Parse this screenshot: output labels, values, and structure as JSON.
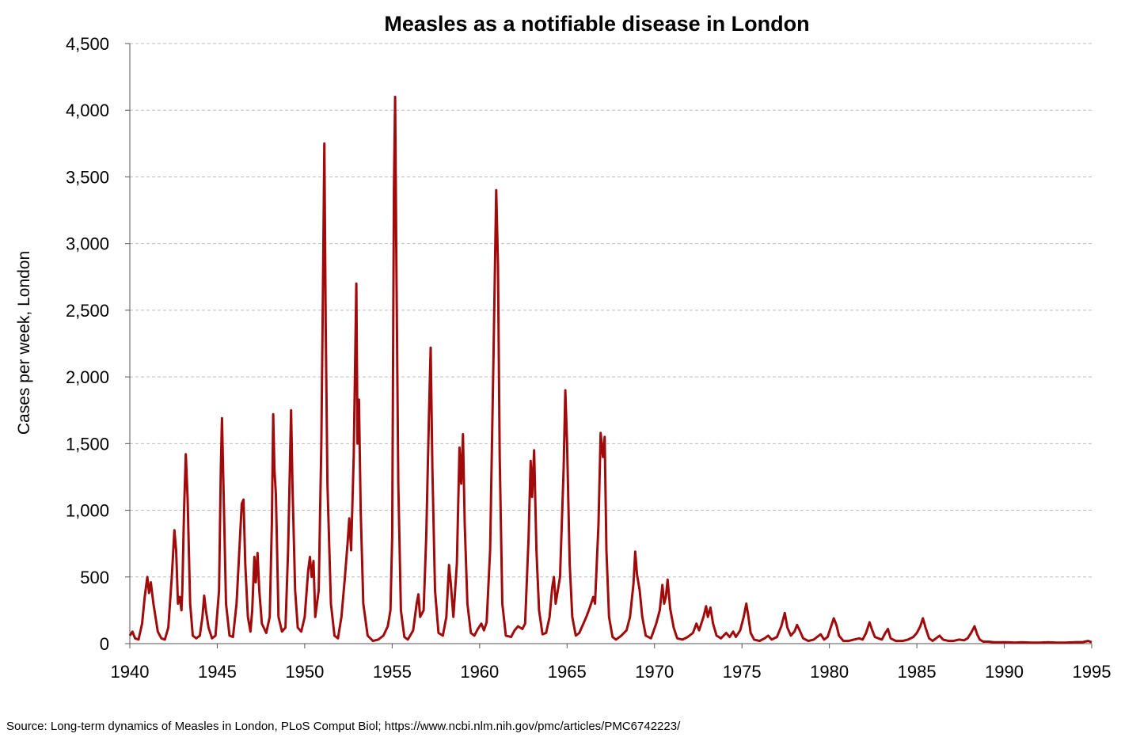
{
  "chart_data": {
    "type": "line",
    "title": "Measles as a notifiable disease in London",
    "xlabel": "",
    "ylabel": "Cases per week, London",
    "source": "Source: Long-term dynamics of Measles in London, PLoS Comput Biol; https://www.ncbi.nlm.nih.gov/pmc/articles/PMC6742223/",
    "xlim": [
      1940,
      1995
    ],
    "ylim": [
      0,
      4500
    ],
    "x_ticks": [
      "1940",
      "1945",
      "1950",
      "1955",
      "1960",
      "1965",
      "1970",
      "1975",
      "1980",
      "1985",
      "1990",
      "1995"
    ],
    "y_ticks": [
      "0",
      "500",
      "1,000",
      "1,500",
      "2,000",
      "2,500",
      "3,000",
      "3,500",
      "4,000",
      "4,500"
    ],
    "grid": "horizontal dashed",
    "line_color": "#a00a0a",
    "series": [
      {
        "name": "",
        "points": [
          [
            1940.0,
            60
          ],
          [
            1940.15,
            90
          ],
          [
            1940.3,
            40
          ],
          [
            1940.5,
            30
          ],
          [
            1940.7,
            150
          ],
          [
            1940.85,
            350
          ],
          [
            1941.0,
            500
          ],
          [
            1941.1,
            380
          ],
          [
            1941.2,
            460
          ],
          [
            1941.35,
            300
          ],
          [
            1941.6,
            90
          ],
          [
            1941.8,
            40
          ],
          [
            1942.0,
            30
          ],
          [
            1942.2,
            120
          ],
          [
            1942.4,
            500
          ],
          [
            1942.55,
            850
          ],
          [
            1942.65,
            700
          ],
          [
            1942.75,
            300
          ],
          [
            1942.85,
            350
          ],
          [
            1942.95,
            250
          ],
          [
            1943.0,
            400
          ],
          [
            1943.1,
            1000
          ],
          [
            1943.2,
            1420
          ],
          [
            1943.3,
            1100
          ],
          [
            1943.45,
            300
          ],
          [
            1943.6,
            60
          ],
          [
            1943.8,
            40
          ],
          [
            1944.0,
            60
          ],
          [
            1944.15,
            200
          ],
          [
            1944.25,
            360
          ],
          [
            1944.35,
            250
          ],
          [
            1944.5,
            120
          ],
          [
            1944.7,
            40
          ],
          [
            1944.9,
            60
          ],
          [
            1945.1,
            400
          ],
          [
            1945.2,
            1300
          ],
          [
            1945.27,
            1690
          ],
          [
            1945.35,
            1200
          ],
          [
            1945.5,
            300
          ],
          [
            1945.7,
            60
          ],
          [
            1945.9,
            50
          ],
          [
            1946.1,
            300
          ],
          [
            1946.3,
            800
          ],
          [
            1946.4,
            1050
          ],
          [
            1946.5,
            1080
          ],
          [
            1946.6,
            600
          ],
          [
            1946.75,
            200
          ],
          [
            1946.9,
            90
          ],
          [
            1947.0,
            250
          ],
          [
            1947.12,
            650
          ],
          [
            1947.2,
            460
          ],
          [
            1947.3,
            680
          ],
          [
            1947.4,
            400
          ],
          [
            1947.55,
            150
          ],
          [
            1947.8,
            80
          ],
          [
            1948.0,
            200
          ],
          [
            1948.12,
            900
          ],
          [
            1948.2,
            1720
          ],
          [
            1948.27,
            1300
          ],
          [
            1948.35,
            1120
          ],
          [
            1948.5,
            200
          ],
          [
            1948.7,
            90
          ],
          [
            1948.9,
            120
          ],
          [
            1949.05,
            700
          ],
          [
            1949.15,
            1300
          ],
          [
            1949.22,
            1750
          ],
          [
            1949.3,
            1200
          ],
          [
            1949.45,
            400
          ],
          [
            1949.6,
            120
          ],
          [
            1949.8,
            90
          ],
          [
            1950.0,
            200
          ],
          [
            1950.2,
            550
          ],
          [
            1950.3,
            650
          ],
          [
            1950.4,
            500
          ],
          [
            1950.5,
            620
          ],
          [
            1950.6,
            200
          ],
          [
            1950.8,
            400
          ],
          [
            1950.95,
            1500
          ],
          [
            1951.05,
            2750
          ],
          [
            1951.12,
            3750
          ],
          [
            1951.2,
            2400
          ],
          [
            1951.3,
            1200
          ],
          [
            1951.5,
            300
          ],
          [
            1951.7,
            60
          ],
          [
            1951.9,
            40
          ],
          [
            1952.1,
            200
          ],
          [
            1952.3,
            500
          ],
          [
            1952.45,
            750
          ],
          [
            1952.55,
            940
          ],
          [
            1952.65,
            700
          ],
          [
            1952.8,
            1400
          ],
          [
            1952.95,
            2700
          ],
          [
            1953.02,
            1500
          ],
          [
            1953.1,
            1830
          ],
          [
            1953.2,
            1000
          ],
          [
            1953.35,
            300
          ],
          [
            1953.6,
            60
          ],
          [
            1953.9,
            20
          ],
          [
            1954.2,
            30
          ],
          [
            1954.5,
            60
          ],
          [
            1954.75,
            130
          ],
          [
            1954.9,
            250
          ],
          [
            1955.0,
            800
          ],
          [
            1955.1,
            3400
          ],
          [
            1955.17,
            4100
          ],
          [
            1955.25,
            2700
          ],
          [
            1955.35,
            1200
          ],
          [
            1955.5,
            250
          ],
          [
            1955.7,
            50
          ],
          [
            1955.9,
            30
          ],
          [
            1956.2,
            100
          ],
          [
            1956.4,
            300
          ],
          [
            1956.5,
            370
          ],
          [
            1956.6,
            200
          ],
          [
            1956.8,
            250
          ],
          [
            1956.95,
            800
          ],
          [
            1957.1,
            1700
          ],
          [
            1957.2,
            2220
          ],
          [
            1957.3,
            1300
          ],
          [
            1957.45,
            400
          ],
          [
            1957.65,
            80
          ],
          [
            1957.9,
            60
          ],
          [
            1958.1,
            200
          ],
          [
            1958.25,
            590
          ],
          [
            1958.35,
            450
          ],
          [
            1958.5,
            200
          ],
          [
            1958.7,
            600
          ],
          [
            1958.85,
            1470
          ],
          [
            1958.95,
            1200
          ],
          [
            1959.05,
            1570
          ],
          [
            1959.15,
            900
          ],
          [
            1959.3,
            300
          ],
          [
            1959.5,
            80
          ],
          [
            1959.7,
            60
          ],
          [
            1959.9,
            110
          ],
          [
            1960.1,
            150
          ],
          [
            1960.25,
            100
          ],
          [
            1960.4,
            160
          ],
          [
            1960.6,
            700
          ],
          [
            1960.8,
            2200
          ],
          [
            1960.95,
            3400
          ],
          [
            1961.05,
            2850
          ],
          [
            1961.15,
            1400
          ],
          [
            1961.3,
            300
          ],
          [
            1961.5,
            60
          ],
          [
            1961.8,
            50
          ],
          [
            1962.0,
            100
          ],
          [
            1962.2,
            130
          ],
          [
            1962.45,
            110
          ],
          [
            1962.6,
            150
          ],
          [
            1962.8,
            800
          ],
          [
            1962.92,
            1370
          ],
          [
            1963.0,
            1100
          ],
          [
            1963.12,
            1450
          ],
          [
            1963.25,
            700
          ],
          [
            1963.4,
            250
          ],
          [
            1963.6,
            70
          ],
          [
            1963.8,
            80
          ],
          [
            1964.0,
            200
          ],
          [
            1964.15,
            420
          ],
          [
            1964.25,
            500
          ],
          [
            1964.35,
            300
          ],
          [
            1964.6,
            500
          ],
          [
            1964.8,
            1300
          ],
          [
            1964.9,
            1900
          ],
          [
            1965.0,
            1500
          ],
          [
            1965.15,
            600
          ],
          [
            1965.3,
            200
          ],
          [
            1965.5,
            60
          ],
          [
            1965.7,
            80
          ],
          [
            1965.9,
            140
          ],
          [
            1966.1,
            200
          ],
          [
            1966.3,
            270
          ],
          [
            1966.5,
            350
          ],
          [
            1966.6,
            300
          ],
          [
            1966.8,
            900
          ],
          [
            1966.92,
            1580
          ],
          [
            1967.05,
            1400
          ],
          [
            1967.15,
            1550
          ],
          [
            1967.25,
            700
          ],
          [
            1967.4,
            200
          ],
          [
            1967.6,
            50
          ],
          [
            1967.8,
            30
          ],
          [
            1968.1,
            60
          ],
          [
            1968.4,
            100
          ],
          [
            1968.6,
            200
          ],
          [
            1968.8,
            450
          ],
          [
            1968.9,
            690
          ],
          [
            1969.0,
            520
          ],
          [
            1969.15,
            400
          ],
          [
            1969.3,
            200
          ],
          [
            1969.5,
            60
          ],
          [
            1969.8,
            40
          ],
          [
            1970.1,
            150
          ],
          [
            1970.3,
            250
          ],
          [
            1970.45,
            440
          ],
          [
            1970.55,
            300
          ],
          [
            1970.65,
            350
          ],
          [
            1970.75,
            480
          ],
          [
            1970.9,
            260
          ],
          [
            1971.1,
            120
          ],
          [
            1971.3,
            40
          ],
          [
            1971.6,
            30
          ],
          [
            1971.9,
            50
          ],
          [
            1972.2,
            80
          ],
          [
            1972.4,
            150
          ],
          [
            1972.55,
            100
          ],
          [
            1972.8,
            200
          ],
          [
            1972.95,
            280
          ],
          [
            1973.05,
            200
          ],
          [
            1973.2,
            270
          ],
          [
            1973.35,
            150
          ],
          [
            1973.55,
            60
          ],
          [
            1973.8,
            40
          ],
          [
            1974.1,
            80
          ],
          [
            1974.3,
            50
          ],
          [
            1974.5,
            90
          ],
          [
            1974.65,
            50
          ],
          [
            1974.9,
            100
          ],
          [
            1975.1,
            200
          ],
          [
            1975.25,
            300
          ],
          [
            1975.35,
            220
          ],
          [
            1975.5,
            80
          ],
          [
            1975.7,
            30
          ],
          [
            1976.0,
            20
          ],
          [
            1976.3,
            40
          ],
          [
            1976.5,
            60
          ],
          [
            1976.7,
            30
          ],
          [
            1977.0,
            50
          ],
          [
            1977.25,
            130
          ],
          [
            1977.45,
            230
          ],
          [
            1977.6,
            120
          ],
          [
            1977.8,
            60
          ],
          [
            1978.0,
            90
          ],
          [
            1978.15,
            140
          ],
          [
            1978.3,
            100
          ],
          [
            1978.5,
            40
          ],
          [
            1978.8,
            20
          ],
          [
            1979.1,
            30
          ],
          [
            1979.3,
            50
          ],
          [
            1979.5,
            70
          ],
          [
            1979.7,
            30
          ],
          [
            1979.9,
            50
          ],
          [
            1980.1,
            130
          ],
          [
            1980.25,
            190
          ],
          [
            1980.4,
            140
          ],
          [
            1980.55,
            60
          ],
          [
            1980.8,
            20
          ],
          [
            1981.1,
            20
          ],
          [
            1981.4,
            30
          ],
          [
            1981.7,
            40
          ],
          [
            1981.9,
            30
          ],
          [
            1982.1,
            80
          ],
          [
            1982.3,
            160
          ],
          [
            1982.45,
            100
          ],
          [
            1982.6,
            50
          ],
          [
            1982.8,
            40
          ],
          [
            1983.0,
            30
          ],
          [
            1983.2,
            80
          ],
          [
            1983.35,
            110
          ],
          [
            1983.5,
            40
          ],
          [
            1983.8,
            20
          ],
          [
            1984.2,
            20
          ],
          [
            1984.5,
            30
          ],
          [
            1984.8,
            50
          ],
          [
            1985.0,
            80
          ],
          [
            1985.2,
            130
          ],
          [
            1985.35,
            190
          ],
          [
            1985.5,
            120
          ],
          [
            1985.7,
            40
          ],
          [
            1985.9,
            20
          ],
          [
            1986.1,
            40
          ],
          [
            1986.3,
            60
          ],
          [
            1986.5,
            30
          ],
          [
            1986.8,
            20
          ],
          [
            1987.1,
            20
          ],
          [
            1987.4,
            30
          ],
          [
            1987.7,
            25
          ],
          [
            1987.9,
            40
          ],
          [
            1988.1,
            80
          ],
          [
            1988.3,
            130
          ],
          [
            1988.45,
            70
          ],
          [
            1988.6,
            30
          ],
          [
            1988.8,
            15
          ],
          [
            1989.1,
            15
          ],
          [
            1989.4,
            10
          ],
          [
            1989.8,
            10
          ],
          [
            1990.2,
            10
          ],
          [
            1990.6,
            8
          ],
          [
            1991.0,
            10
          ],
          [
            1991.5,
            8
          ],
          [
            1992.0,
            8
          ],
          [
            1992.5,
            10
          ],
          [
            1993.0,
            8
          ],
          [
            1993.5,
            8
          ],
          [
            1994.0,
            10
          ],
          [
            1994.5,
            12
          ],
          [
            1994.8,
            20
          ],
          [
            1995.0,
            10
          ]
        ]
      }
    ]
  }
}
